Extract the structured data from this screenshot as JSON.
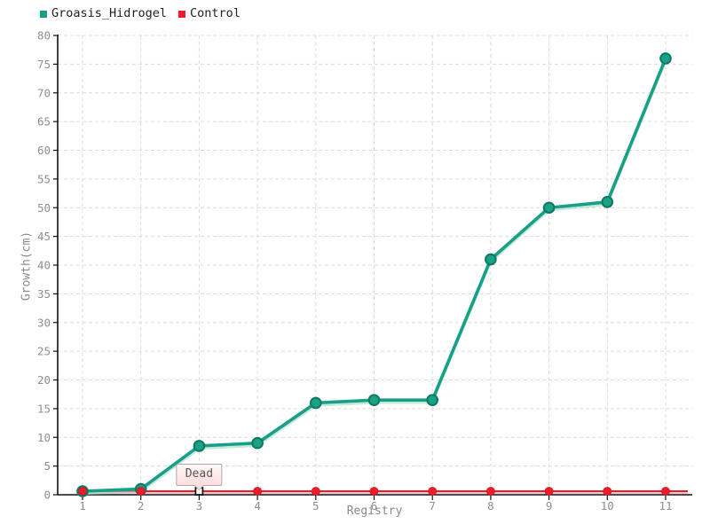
{
  "legend": {
    "items": [
      {
        "label": "Groasis_Hidrogel",
        "color": "#18a086"
      },
      {
        "label": "Control",
        "color": "#ec1c2c"
      }
    ]
  },
  "chart_data": {
    "type": "line",
    "x": [
      1,
      2,
      3,
      4,
      5,
      6,
      7,
      8,
      9,
      10,
      11
    ],
    "xlabel": "Registry",
    "ylabel": "Growth(cm)",
    "ylim": [
      0,
      80
    ],
    "ytick_step": 5,
    "grid": true,
    "legend_position": "top-left",
    "series": [
      {
        "name": "Groasis_Hidrogel",
        "color": "#18a086",
        "marker": "circle",
        "marker_fill": "#1ba186",
        "marker_stroke": "#0c7a61",
        "shadow_color": "#9ed9c8",
        "values": [
          0,
          1,
          8.5,
          9,
          16,
          16.5,
          16.5,
          41,
          50,
          51,
          76
        ]
      },
      {
        "name": "Control",
        "color": "#ec1c2c",
        "marker": "circle",
        "marker_fill": "#ec1c2c",
        "marker_stroke": "#c8121f",
        "shadow_color": "#f5aab0",
        "values": [
          0,
          0,
          0,
          0,
          0,
          0,
          0,
          0,
          0,
          0,
          0
        ]
      }
    ],
    "annotation": {
      "text": "Dead",
      "series": "Control",
      "x": 3,
      "y": 0,
      "marker": "white-square"
    }
  },
  "colors": {
    "background": "#ffffff",
    "grid": "#dcdcdc",
    "axis": "#000000",
    "tick_label": "#8f8f8f",
    "axis_title": "#8a8a8a",
    "legend_text": "#222222",
    "balloon_bg": "#ffdede",
    "balloon_border": "#a8a8a8",
    "balloon_text": "#555555"
  }
}
